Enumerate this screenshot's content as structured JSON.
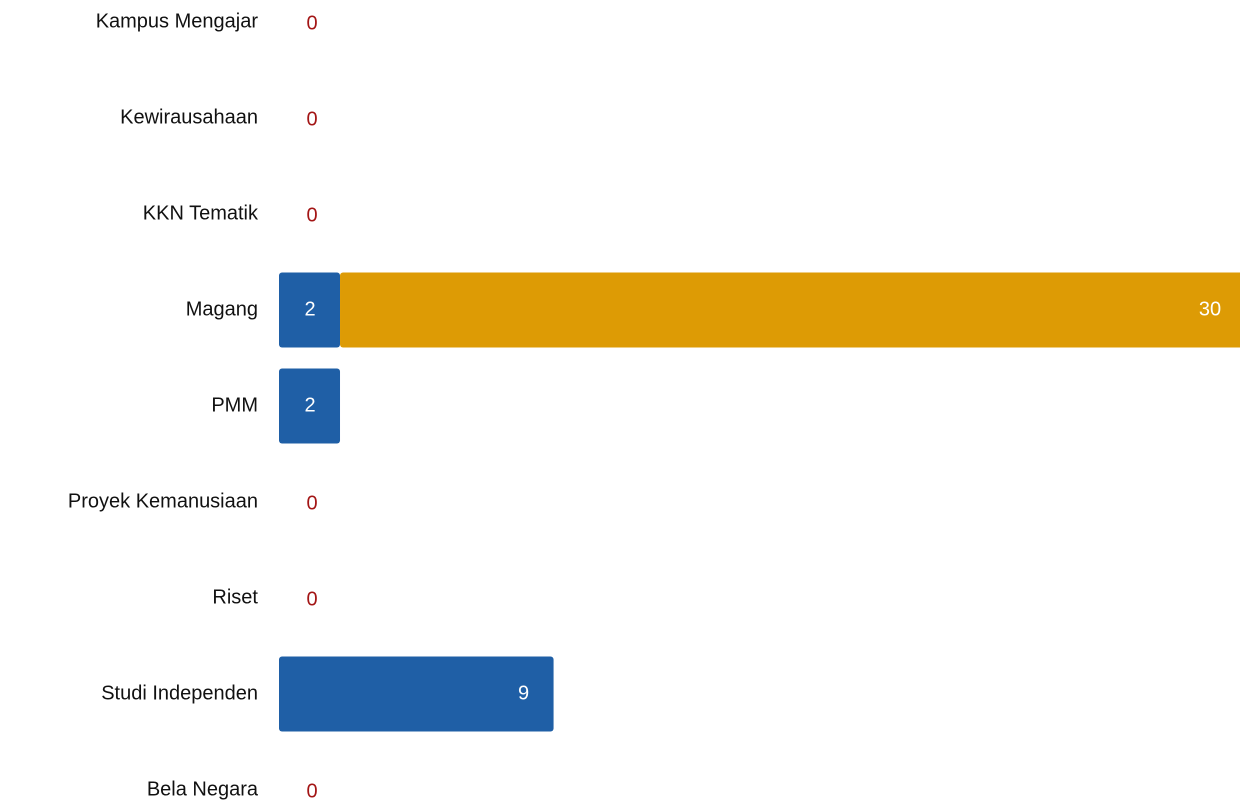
{
  "chart_data": {
    "type": "stacked_barh",
    "categories": [
      "Kampus Mengajar",
      "Kewirausahaan",
      "KKN Tematik",
      "Magang",
      "PMM",
      "Proyek Kemanusiaan",
      "Riset",
      "Studi Independen",
      "Bela Negara"
    ],
    "series": [
      {
        "color": "#1f5fa6",
        "values": [
          0,
          0,
          0,
          2,
          2,
          0,
          0,
          9,
          0
        ]
      },
      {
        "color": "#dd9b05",
        "values": [
          0,
          0,
          0,
          30,
          0,
          0,
          0,
          0,
          0
        ]
      }
    ],
    "xlim": [
      0,
      31.5
    ],
    "zero_label_color": "#a31515"
  }
}
